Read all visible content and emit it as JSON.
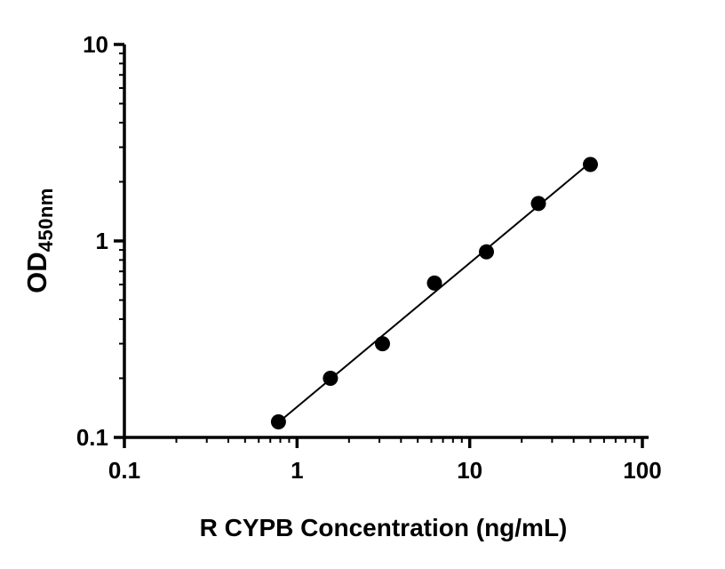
{
  "chart_data": {
    "type": "scatter",
    "title": "",
    "x": [
      0.78,
      1.56,
      3.125,
      6.25,
      12.5,
      25,
      50
    ],
    "y": [
      0.12,
      0.2,
      0.3,
      0.61,
      0.88,
      1.55,
      2.45
    ],
    "fit": "linear fit in log-log space (power curve)",
    "xlabel": "R CYPB Concentration (ng/mL)",
    "ylabel_main": "OD",
    "ylabel_sub": "450nm",
    "xscale": "log",
    "yscale": "log",
    "xlim": [
      0.1,
      100
    ],
    "ylim": [
      0.1,
      10
    ],
    "x_ticks": [
      0.1,
      1,
      10,
      100
    ],
    "x_tick_labels": [
      "0.1",
      "1",
      "10",
      "100"
    ],
    "y_ticks": [
      0.1,
      1,
      10
    ],
    "y_tick_labels": [
      "0.1",
      "1",
      "10"
    ],
    "grid": false,
    "legend": "none",
    "marker_color": "#000000",
    "line_color": "#000000",
    "axis_color": "#000000",
    "background": "#ffffff"
  }
}
